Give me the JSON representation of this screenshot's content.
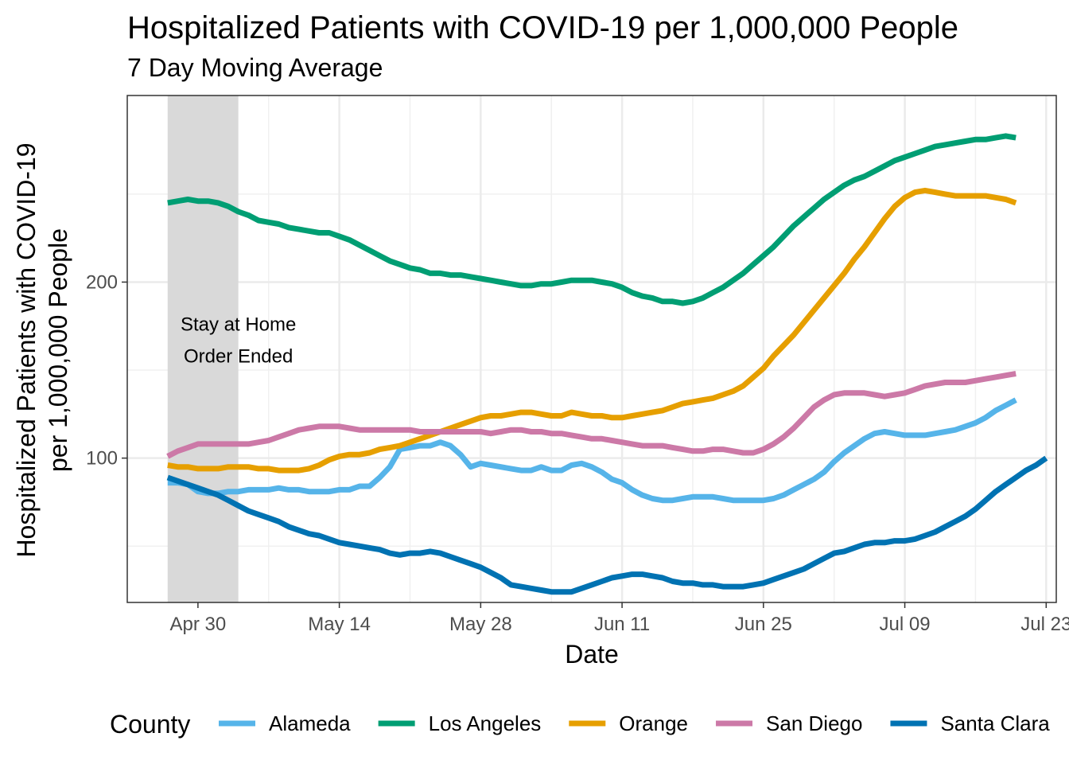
{
  "chart_data": {
    "type": "line",
    "title": "Hospitalized Patients with COVID-19 per 1,000,000 People",
    "subtitle": "7 Day Moving Average",
    "xlabel": "Date",
    "ylabel_line1": "Hospitalized Patients with COVID-19",
    "ylabel_line2": "per 1,000,000 People",
    "x_start": "2020-04-27",
    "xlim": [
      "2020-04-23",
      "2020-07-24"
    ],
    "ylim": [
      18,
      306
    ],
    "x_ticks": [
      {
        "date": "2020-04-30",
        "label": "Apr 30"
      },
      {
        "date": "2020-05-14",
        "label": "May 14"
      },
      {
        "date": "2020-05-28",
        "label": "May 28"
      },
      {
        "date": "2020-06-11",
        "label": "Jun 11"
      },
      {
        "date": "2020-06-25",
        "label": "Jun 25"
      },
      {
        "date": "2020-07-09",
        "label": "Jul 09"
      },
      {
        "date": "2020-07-23",
        "label": "Jul 23"
      }
    ],
    "y_ticks": [
      100,
      200
    ],
    "y_minor": [
      50,
      150,
      250
    ],
    "grid": true,
    "shaded_region": {
      "start": "2020-04-27",
      "end": "2020-05-04",
      "color": "#d9d9d9"
    },
    "annotation": {
      "line1": "Stay at Home",
      "line2": "Order Ended",
      "date": "2020-05-04",
      "y_line1": 176,
      "y_line2": 158
    },
    "legend": {
      "title": "County",
      "position": "bottom"
    },
    "series": [
      {
        "name": "Alameda",
        "color": "#56B4E9",
        "values": [
          86,
          86,
          85,
          81,
          80,
          80,
          81,
          81,
          82,
          82,
          82,
          83,
          82,
          82,
          81,
          81,
          81,
          82,
          82,
          84,
          84,
          89,
          95,
          105,
          106,
          107,
          107,
          109,
          107,
          102,
          95,
          97,
          96,
          95,
          94,
          93,
          93,
          95,
          93,
          93,
          96,
          97,
          95,
          92,
          88,
          86,
          82,
          79,
          77,
          76,
          76,
          77,
          78,
          78,
          78,
          77,
          76,
          76,
          76,
          76,
          77,
          79,
          82,
          85,
          88,
          92,
          98,
          103,
          107,
          111,
          114,
          115,
          114,
          113,
          113,
          113,
          114,
          115,
          116,
          118,
          120,
          123,
          127,
          130,
          133
        ]
      },
      {
        "name": "Los Angeles",
        "color": "#009E73",
        "values": [
          245,
          246,
          247,
          246,
          246,
          245,
          243,
          240,
          238,
          235,
          234,
          233,
          231,
          230,
          229,
          228,
          228,
          226,
          224,
          221,
          218,
          215,
          212,
          210,
          208,
          207,
          205,
          205,
          204,
          204,
          203,
          202,
          201,
          200,
          199,
          198,
          198,
          199,
          199,
          200,
          201,
          201,
          201,
          200,
          199,
          197,
          194,
          192,
          191,
          189,
          189,
          188,
          189,
          191,
          194,
          197,
          201,
          205,
          210,
          215,
          220,
          226,
          232,
          237,
          242,
          247,
          251,
          255,
          258,
          260,
          263,
          266,
          269,
          271,
          273,
          275,
          277,
          278,
          279,
          280,
          281,
          281,
          282,
          283,
          282
        ]
      },
      {
        "name": "Orange",
        "color": "#E69F00",
        "values": [
          96,
          95,
          95,
          94,
          94,
          94,
          95,
          95,
          95,
          94,
          94,
          93,
          93,
          93,
          94,
          96,
          99,
          101,
          102,
          102,
          103,
          105,
          106,
          107,
          109,
          111,
          113,
          115,
          117,
          119,
          121,
          123,
          124,
          124,
          125,
          126,
          126,
          125,
          124,
          124,
          126,
          125,
          124,
          124,
          123,
          123,
          124,
          125,
          126,
          127,
          129,
          131,
          132,
          133,
          134,
          136,
          138,
          141,
          146,
          151,
          158,
          164,
          170,
          177,
          184,
          191,
          198,
          205,
          213,
          220,
          228,
          236,
          243,
          248,
          251,
          252,
          251,
          250,
          249,
          249,
          249,
          249,
          248,
          247,
          245
        ]
      },
      {
        "name": "San Diego",
        "color": "#CC79A7",
        "values": [
          101,
          104,
          106,
          108,
          108,
          108,
          108,
          108,
          108,
          109,
          110,
          112,
          114,
          116,
          117,
          118,
          118,
          118,
          117,
          116,
          116,
          116,
          116,
          116,
          116,
          115,
          115,
          115,
          115,
          115,
          115,
          115,
          114,
          115,
          116,
          116,
          115,
          115,
          114,
          114,
          113,
          112,
          111,
          111,
          110,
          109,
          108,
          107,
          107,
          107,
          106,
          105,
          104,
          104,
          105,
          105,
          104,
          103,
          103,
          105,
          108,
          112,
          117,
          123,
          129,
          133,
          136,
          137,
          137,
          137,
          136,
          135,
          136,
          137,
          139,
          141,
          142,
          143,
          143,
          143,
          144,
          145,
          146,
          147,
          148
        ]
      },
      {
        "name": "Santa Clara",
        "color": "#0072B2",
        "values": [
          89,
          87,
          85,
          83,
          81,
          79,
          76,
          73,
          70,
          68,
          66,
          64,
          61,
          59,
          57,
          56,
          54,
          52,
          51,
          50,
          49,
          48,
          46,
          45,
          46,
          46,
          47,
          46,
          44,
          42,
          40,
          38,
          35,
          32,
          28,
          27,
          26,
          25,
          24,
          24,
          24,
          26,
          28,
          30,
          32,
          33,
          34,
          34,
          33,
          32,
          30,
          29,
          29,
          28,
          28,
          27,
          27,
          27,
          28,
          29,
          31,
          33,
          35,
          37,
          40,
          43,
          46,
          47,
          49,
          51,
          52,
          52,
          53,
          53,
          54,
          56,
          58,
          61,
          64,
          67,
          71,
          76,
          81,
          85,
          89,
          93,
          96,
          100
        ]
      }
    ]
  }
}
